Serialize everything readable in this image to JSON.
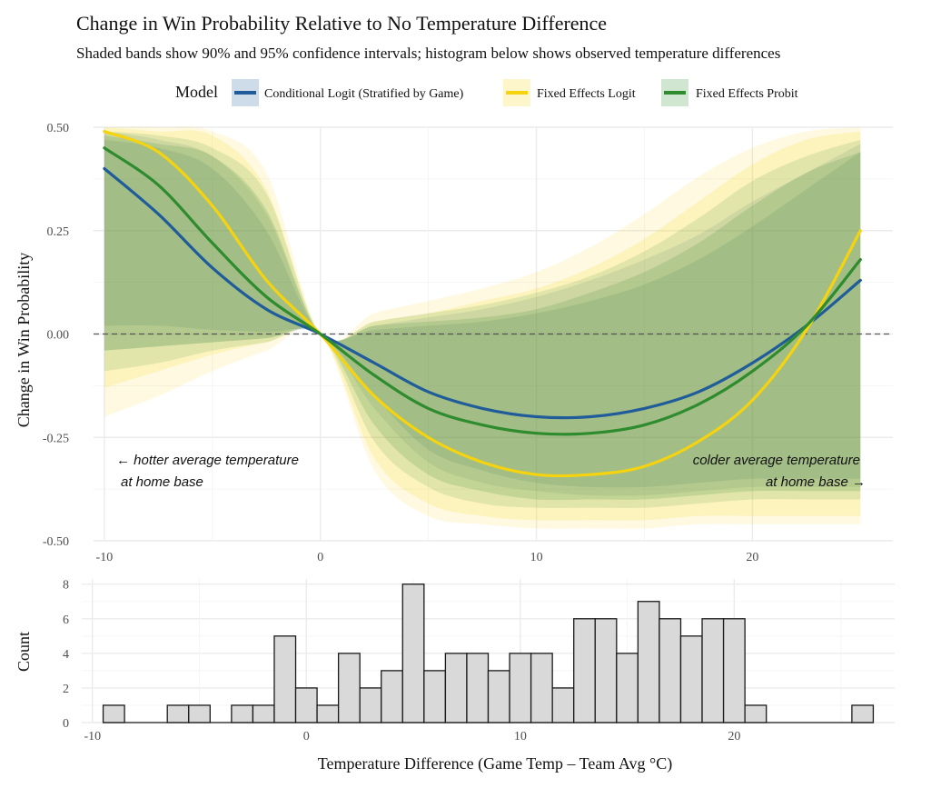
{
  "chart_data": [
    {
      "type": "line",
      "title": "Change in Win Probability Relative to No Temperature Difference",
      "subtitle": "Shaded bands show 90% and 95% confidence intervals; histogram below shows observed temperature differences",
      "ylabel": "Change in Win Probability",
      "xlim": [
        -10.5,
        26.5
      ],
      "ylim": [
        -0.5,
        0.5
      ],
      "x_ticks": [
        "-10",
        "0",
        "10",
        "20"
      ],
      "y_ticks": [
        "0.50",
        "0.25",
        "0.00",
        "-0.25",
        "-0.50"
      ],
      "reference_line": {
        "y": 0,
        "style": "dashed"
      },
      "legend": {
        "title": "Model",
        "position": "top",
        "entries": [
          "Conditional Logit (Stratified by Game)",
          "Fixed Effects Logit",
          "Fixed Effects Probit"
        ]
      },
      "annotations": {
        "left": [
          "← hotter average temperature",
          "at home base"
        ],
        "right": [
          "colder average temperature",
          "at home base →"
        ]
      },
      "colors": {
        "Conditional Logit (Stratified by Game)": "#1f5c99",
        "Fixed Effects Logit": "#f5d40f",
        "Fixed Effects Probit": "#2e8b2e"
      },
      "series": [
        {
          "name": "Conditional Logit (Stratified by Game)",
          "x": [
            -10,
            -7.5,
            -5,
            -2.5,
            0,
            2.5,
            5,
            7.5,
            10,
            12.5,
            15,
            17.5,
            20,
            22.5,
            25
          ],
          "y": [
            0.4,
            0.29,
            0.16,
            0.06,
            0.0,
            -0.07,
            -0.14,
            -0.18,
            -0.2,
            -0.2,
            -0.18,
            -0.14,
            -0.07,
            0.02,
            0.13
          ],
          "ci90_low": [
            0.02,
            0.02,
            0.01,
            0.005,
            0.0,
            -0.15,
            -0.28,
            -0.33,
            -0.36,
            -0.37,
            -0.37,
            -0.36,
            -0.35,
            -0.35,
            -0.35
          ],
          "ci90_high": [
            0.47,
            0.45,
            0.4,
            0.25,
            0.0,
            0.01,
            0.02,
            0.03,
            0.05,
            0.08,
            0.12,
            0.18,
            0.26,
            0.35,
            0.44
          ],
          "ci95_low": [
            -0.04,
            -0.03,
            -0.02,
            -0.01,
            0.0,
            -0.18,
            -0.31,
            -0.36,
            -0.38,
            -0.39,
            -0.39,
            -0.38,
            -0.37,
            -0.37,
            -0.37
          ],
          "ci95_high": [
            0.49,
            0.47,
            0.43,
            0.29,
            0.0,
            0.02,
            0.04,
            0.06,
            0.09,
            0.13,
            0.18,
            0.24,
            0.32,
            0.39,
            0.46
          ]
        },
        {
          "name": "Fixed Effects Logit",
          "x": [
            -10,
            -7.5,
            -5,
            -2.5,
            0,
            2.5,
            5,
            7.5,
            10,
            12.5,
            15,
            17.5,
            20,
            22.5,
            25
          ],
          "y": [
            0.49,
            0.44,
            0.31,
            0.13,
            0.0,
            -0.15,
            -0.25,
            -0.31,
            -0.34,
            -0.34,
            -0.32,
            -0.26,
            -0.16,
            0.01,
            0.25
          ],
          "ci90_low": [
            -0.13,
            -0.09,
            -0.05,
            -0.02,
            0.0,
            -0.3,
            -0.41,
            -0.44,
            -0.45,
            -0.45,
            -0.45,
            -0.44,
            -0.44,
            -0.44,
            -0.44
          ],
          "ci90_high": [
            0.5,
            0.49,
            0.48,
            0.35,
            0.0,
            0.03,
            0.05,
            0.08,
            0.11,
            0.16,
            0.23,
            0.32,
            0.41,
            0.47,
            0.49
          ],
          "ci95_low": [
            -0.2,
            -0.15,
            -0.09,
            -0.04,
            0.0,
            -0.33,
            -0.44,
            -0.46,
            -0.47,
            -0.47,
            -0.47,
            -0.46,
            -0.46,
            -0.46,
            -0.46
          ],
          "ci95_high": [
            0.5,
            0.5,
            0.49,
            0.39,
            0.0,
            0.05,
            0.08,
            0.11,
            0.15,
            0.21,
            0.29,
            0.38,
            0.45,
            0.49,
            0.5
          ]
        },
        {
          "name": "Fixed Effects Probit",
          "x": [
            -10,
            -7.5,
            -5,
            -2.5,
            0,
            2.5,
            5,
            7.5,
            10,
            12.5,
            15,
            17.5,
            20,
            22.5,
            25
          ],
          "y": [
            0.45,
            0.36,
            0.22,
            0.09,
            0.0,
            -0.1,
            -0.18,
            -0.22,
            -0.24,
            -0.24,
            -0.22,
            -0.17,
            -0.09,
            0.02,
            0.18
          ],
          "ci90_low": [
            -0.04,
            -0.03,
            -0.02,
            -0.01,
            0.0,
            -0.22,
            -0.34,
            -0.38,
            -0.4,
            -0.4,
            -0.4,
            -0.39,
            -0.38,
            -0.38,
            -0.38
          ],
          "ci90_high": [
            0.48,
            0.46,
            0.43,
            0.3,
            0.0,
            0.02,
            0.03,
            0.04,
            0.06,
            0.1,
            0.15,
            0.22,
            0.31,
            0.39,
            0.44
          ],
          "ci95_low": [
            -0.09,
            -0.07,
            -0.04,
            -0.02,
            0.0,
            -0.26,
            -0.37,
            -0.41,
            -0.42,
            -0.42,
            -0.42,
            -0.41,
            -0.4,
            -0.4,
            -0.4
          ],
          "ci95_high": [
            0.49,
            0.48,
            0.45,
            0.34,
            0.0,
            0.03,
            0.05,
            0.07,
            0.1,
            0.14,
            0.2,
            0.28,
            0.37,
            0.43,
            0.47
          ]
        }
      ]
    },
    {
      "type": "bar",
      "xlabel": "Temperature Difference (Game Temp – Team Avg °C)",
      "ylabel": "Count",
      "xlim": [
        -10.5,
        27.5
      ],
      "ylim": [
        0,
        8.3
      ],
      "x_ticks": [
        "-10",
        "0",
        "10",
        "20"
      ],
      "y_ticks": [
        "0",
        "2",
        "4",
        "6",
        "8"
      ],
      "bin_width": 1,
      "bin_left_edges": [
        -9.5,
        -8.5,
        -7.5,
        -6.5,
        -5.5,
        -4.5,
        -3.5,
        -2.5,
        -1.5,
        -0.5,
        0.5,
        1.5,
        2.5,
        3.5,
        4.5,
        5.5,
        6.5,
        7.5,
        8.5,
        9.5,
        10.5,
        11.5,
        12.5,
        13.5,
        14.5,
        15.5,
        16.5,
        17.5,
        18.5,
        19.5,
        20.5,
        21.5,
        22.5,
        23.5,
        24.5,
        25.5
      ],
      "counts": [
        1,
        0,
        0,
        1,
        1,
        0,
        1,
        1,
        5,
        2,
        1,
        4,
        2,
        3,
        8,
        3,
        4,
        4,
        3,
        4,
        4,
        2,
        6,
        6,
        4,
        7,
        6,
        5,
        6,
        6,
        1,
        0,
        0,
        0,
        0,
        1
      ],
      "fill": "#d9d9d9",
      "stroke": "#1a1a1a"
    }
  ]
}
